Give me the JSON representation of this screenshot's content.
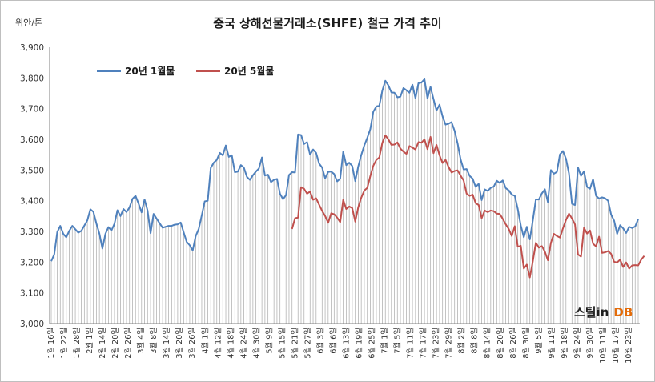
{
  "chart_data": {
    "type": "line",
    "title": "중국 상해선물거래소(SHFE)  철근 가격 추이",
    "ylabel": "위안/톤",
    "ylim": [
      3000,
      3900
    ],
    "yticks": [
      "3,000",
      "3,100",
      "3,200",
      "3,300",
      "3,400",
      "3,500",
      "3,600",
      "3,700",
      "3,800",
      "3,900"
    ],
    "x_tick_labels": [
      "1월 16일",
      "1월 22일",
      "1월 28일",
      "2월 1일",
      "2월 14일",
      "2월 20일",
      "2월 26일",
      "3월 4일",
      "3월 8일",
      "3월 14일",
      "3월 20일",
      "3월 26일",
      "4월 1일",
      "4월 12일",
      "4월 18일",
      "4월 24일",
      "4월 30일",
      "5월 9일",
      "5월 15일",
      "5월 21일",
      "5월 27일",
      "6월 3일",
      "6월 6일",
      "6월 13일",
      "6월 19일",
      "6월 25일",
      "7월 1일",
      "7월 5일",
      "7월 11일",
      "7월 17일",
      "7월 23일",
      "7월 29일",
      "8월 2일",
      "8월 8일",
      "8월 14일",
      "8월 20일",
      "8월 26일",
      "8월 30일",
      "9월 5일",
      "9월 11일",
      "9월 18일",
      "9월 24일",
      "9월 30일",
      "10월 11일",
      "10월 17일",
      "10월 23일"
    ],
    "grid": false,
    "legend_position": "top-left",
    "series": [
      {
        "name": "20년 1월물",
        "color": "#4f81bd",
        "values": [
          3203,
          3225,
          3298,
          3318,
          3292,
          3281,
          3302,
          3318,
          3307,
          3296,
          3302,
          3319,
          3336,
          3372,
          3364,
          3326,
          3293,
          3244,
          3292,
          3314,
          3303,
          3325,
          3369,
          3350,
          3373,
          3363,
          3378,
          3406,
          3416,
          3391,
          3362,
          3404,
          3368,
          3294,
          3357,
          3342,
          3327,
          3312,
          3315,
          3318,
          3318,
          3322,
          3323,
          3329,
          3297,
          3266,
          3255,
          3238,
          3285,
          3308,
          3352,
          3398,
          3400,
          3507,
          3524,
          3533,
          3556,
          3548,
          3580,
          3543,
          3548,
          3493,
          3495,
          3516,
          3508,
          3478,
          3468,
          3483,
          3495,
          3505,
          3541,
          3482,
          3485,
          3461,
          3468,
          3471,
          3423,
          3405,
          3418,
          3484,
          3493,
          3492,
          3616,
          3614,
          3585,
          3591,
          3550,
          3567,
          3556,
          3521,
          3508,
          3473,
          3494,
          3495,
          3487,
          3463,
          3472,
          3560,
          3516,
          3524,
          3513,
          3464,
          3512,
          3549,
          3580,
          3605,
          3633,
          3690,
          3707,
          3710,
          3759,
          3791,
          3776,
          3753,
          3752,
          3737,
          3739,
          3767,
          3760,
          3752,
          3778,
          3734,
          3783,
          3785,
          3796,
          3733,
          3771,
          3731,
          3694,
          3713,
          3675,
          3648,
          3651,
          3656,
          3628,
          3587,
          3535,
          3502,
          3503,
          3481,
          3472,
          3445,
          3455,
          3402,
          3437,
          3432,
          3442,
          3446,
          3465,
          3458,
          3466,
          3441,
          3434,
          3420,
          3416,
          3373,
          3319,
          3281,
          3315,
          3274,
          3336,
          3404,
          3404,
          3424,
          3437,
          3395,
          3500,
          3488,
          3494,
          3551,
          3562,
          3537,
          3489,
          3390,
          3386,
          3508,
          3481,
          3496,
          3445,
          3439,
          3470,
          3416,
          3407,
          3411,
          3408,
          3400,
          3355,
          3335,
          3292,
          3320,
          3310,
          3295,
          3315,
          3311,
          3316,
          3340
        ]
      },
      {
        "name": "20년 5월물",
        "color": "#c0504d",
        "start_index": 80,
        "values": [
          3308,
          3343,
          3345,
          3444,
          3439,
          3423,
          3430,
          3403,
          3408,
          3387,
          3367,
          3350,
          3328,
          3359,
          3356,
          3345,
          3330,
          3403,
          3373,
          3381,
          3376,
          3332,
          3379,
          3410,
          3433,
          3442,
          3480,
          3514,
          3533,
          3541,
          3589,
          3613,
          3600,
          3582,
          3583,
          3590,
          3570,
          3560,
          3553,
          3578,
          3573,
          3567,
          3591,
          3589,
          3600,
          3568,
          3608,
          3555,
          3582,
          3548,
          3523,
          3533,
          3510,
          3492,
          3497,
          3499,
          3482,
          3466,
          3423,
          3416,
          3420,
          3392,
          3386,
          3343,
          3368,
          3363,
          3368,
          3366,
          3358,
          3357,
          3341,
          3323,
          3308,
          3285,
          3317,
          3250,
          3253,
          3179,
          3192,
          3150,
          3203,
          3263,
          3247,
          3252,
          3234,
          3206,
          3263,
          3292,
          3285,
          3280,
          3310,
          3337,
          3358,
          3342,
          3323,
          3225,
          3218,
          3312,
          3293,
          3303,
          3260,
          3251,
          3283,
          3230,
          3232,
          3236,
          3227,
          3201,
          3199,
          3208,
          3184,
          3199,
          3179,
          3189,
          3190,
          3189,
          3208,
          3220
        ]
      }
    ]
  },
  "brand": {
    "part1": "스틸in",
    "part2": "DB"
  }
}
